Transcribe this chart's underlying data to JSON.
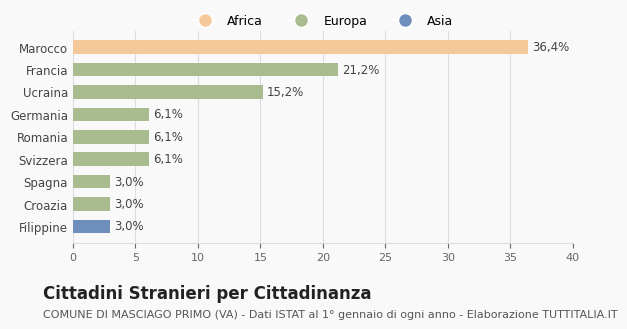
{
  "categories": [
    "Filippine",
    "Croazia",
    "Spagna",
    "Svizzera",
    "Romania",
    "Germania",
    "Ucraina",
    "Francia",
    "Marocco"
  ],
  "values": [
    3.0,
    3.0,
    3.0,
    6.1,
    6.1,
    6.1,
    15.2,
    21.2,
    36.4
  ],
  "labels": [
    "3,0%",
    "3,0%",
    "3,0%",
    "6,1%",
    "6,1%",
    "6,1%",
    "15,2%",
    "21,2%",
    "36,4%"
  ],
  "colors": [
    "#6e8fbc",
    "#a8bc8f",
    "#a8bc8f",
    "#a8bc8f",
    "#a8bc8f",
    "#a8bc8f",
    "#a8bc8f",
    "#a8bc8f",
    "#f5c89a"
  ],
  "legend_labels": [
    "Africa",
    "Europa",
    "Asia"
  ],
  "legend_colors": [
    "#f5c89a",
    "#a8bc8f",
    "#6e8fbc"
  ],
  "xlim": [
    0,
    40
  ],
  "xticks": [
    0,
    5,
    10,
    15,
    20,
    25,
    30,
    35,
    40
  ],
  "title": "Cittadini Stranieri per Cittadinanza",
  "subtitle": "COMUNE DI MASCIAGO PRIMO (VA) - Dati ISTAT al 1° gennaio di ogni anno - Elaborazione TUTTITALIA.IT",
  "title_fontsize": 12,
  "subtitle_fontsize": 8,
  "bg_color": "#f9f9f9",
  "grid_color": "#dddddd"
}
